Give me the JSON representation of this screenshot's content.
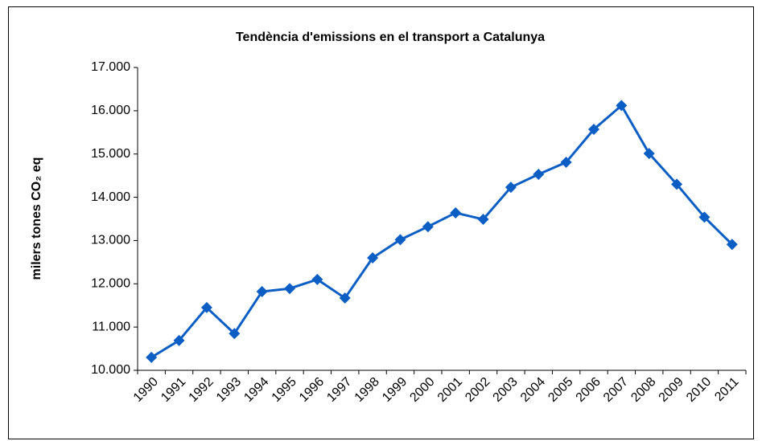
{
  "chart_data": {
    "type": "line",
    "title": "Tendència d'emissions en el transport a Catalunya",
    "y_label": "milers tones CO₂ eq",
    "categories": [
      "1990",
      "1991",
      "1992",
      "1993",
      "1994",
      "1995",
      "1996",
      "1997",
      "1998",
      "1999",
      "2000",
      "2001",
      "2002",
      "2003",
      "2004",
      "2005",
      "2006",
      "2007",
      "2008",
      "2009",
      "2010",
      "2011"
    ],
    "values": [
      10300,
      10690,
      11450,
      10850,
      11820,
      11890,
      12100,
      11670,
      12600,
      13020,
      13320,
      13640,
      13490,
      14230,
      14530,
      14810,
      15570,
      16120,
      15010,
      14300,
      13540,
      12910
    ],
    "color": "#0b5fc4",
    "ylim": [
      10000,
      17000
    ],
    "yticks": [
      {
        "value": 10000,
        "label": "10.000"
      },
      {
        "value": 11000,
        "label": "11.000"
      },
      {
        "value": 12000,
        "label": "12.000"
      },
      {
        "value": 13000,
        "label": "13.000"
      },
      {
        "value": 14000,
        "label": "14.000"
      },
      {
        "value": 15000,
        "label": "15.000"
      },
      {
        "value": 16000,
        "label": "16.000"
      },
      {
        "value": 17000,
        "label": "17.000"
      }
    ],
    "grid": false
  }
}
